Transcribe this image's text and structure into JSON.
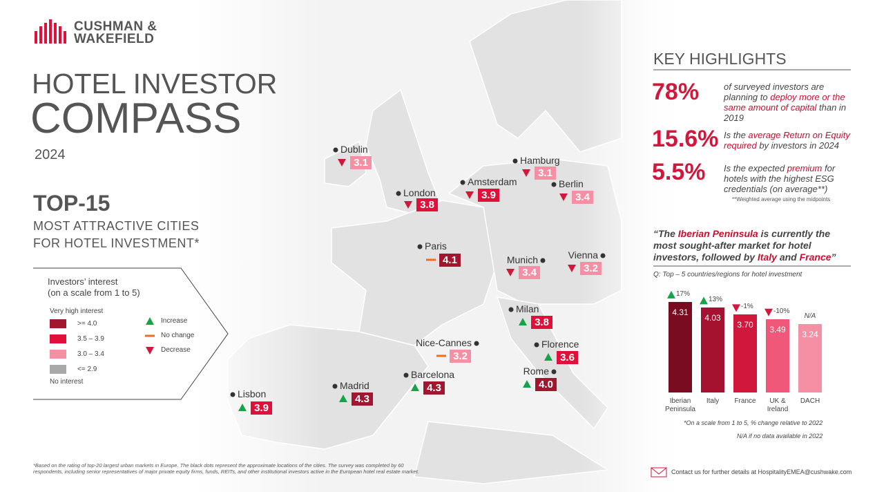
{
  "brand": "CUSHMAN & WAKEFIELD",
  "header": {
    "title_1": "HOTEL INVESTOR",
    "title_2": "COMPASS",
    "year": "2024",
    "top": "TOP-15",
    "subtitle_1": "MOST ATTRACTIVE CITIES",
    "subtitle_2": "FOR HOTEL INVESTMENT*"
  },
  "legend": {
    "title_1": "Investors’ interest",
    "title_2": "(on a scale from 1 to 5)",
    "high": "Very high interest",
    "low": "No interest",
    "tiers": [
      {
        "label": ">= 4.0",
        "color": "#a0172f"
      },
      {
        "label": "3.5 – 3.9",
        "color": "#e0103a"
      },
      {
        "label": "3.0 – 3.4",
        "color": "#f590a4"
      },
      {
        "label": "<= 2.9",
        "color": "#a8a8a8"
      }
    ],
    "trends": [
      {
        "label": "Increase",
        "trend": "up"
      },
      {
        "label": "No change",
        "trend": "flat"
      },
      {
        "label": "Decrease",
        "trend": "down"
      }
    ]
  },
  "cities": [
    {
      "name": "Dublin",
      "score": "3.1",
      "trend": "down",
      "color": "#f590a4"
    },
    {
      "name": "London",
      "score": "3.8",
      "trend": "down",
      "color": "#e0103a"
    },
    {
      "name": "Amsterdam",
      "score": "3.9",
      "trend": "down",
      "color": "#e0103a"
    },
    {
      "name": "Hamburg",
      "score": "3.1",
      "trend": "down",
      "color": "#f590a4"
    },
    {
      "name": "Berlin",
      "score": "3.4",
      "trend": "down",
      "color": "#f590a4"
    },
    {
      "name": "Paris",
      "score": "4.1",
      "trend": "flat",
      "color": "#a0172f"
    },
    {
      "name": "Munich",
      "score": "3.4",
      "trend": "down",
      "color": "#f590a4"
    },
    {
      "name": "Vienna",
      "score": "3.2",
      "trend": "down",
      "color": "#f590a4"
    },
    {
      "name": "Milan",
      "score": "3.8",
      "trend": "up",
      "color": "#e0103a"
    },
    {
      "name": "Nice-Cannes",
      "score": "3.2",
      "trend": "flat",
      "color": "#f590a4"
    },
    {
      "name": "Florence",
      "score": "3.6",
      "trend": "up",
      "color": "#e0103a"
    },
    {
      "name": "Rome",
      "score": "4.0",
      "trend": "up",
      "color": "#a0172f"
    },
    {
      "name": "Barcelona",
      "score": "4.3",
      "trend": "up",
      "color": "#a0172f"
    },
    {
      "name": "Madrid",
      "score": "4.3",
      "trend": "up",
      "color": "#a0172f"
    },
    {
      "name": "Lisbon",
      "score": "3.9",
      "trend": "up",
      "color": "#e0103a"
    }
  ],
  "highlights": {
    "title": "KEY HIGHLIGHTS",
    "items": [
      {
        "stat": "78%",
        "text": [
          {
            "t": "of surveyed investors are planning to "
          },
          {
            "t": "deploy more or the same amount of capital",
            "em": true
          },
          {
            "t": " than in 2019"
          }
        ]
      },
      {
        "stat": "15.6%",
        "text": [
          {
            "t": "Is the "
          },
          {
            "t": "average Return on Equity required",
            "em": true
          },
          {
            "t": " by investors in 2024"
          }
        ]
      },
      {
        "stat": "5.5%",
        "text": [
          {
            "t": "Is the expected "
          },
          {
            "t": "premium",
            "em": true
          },
          {
            "t": " for hotels with the highest ESG credentials (on average**)"
          }
        ]
      }
    ],
    "note": "**Weighted average using the midpoints",
    "quote": [
      {
        "t": "“The "
      },
      {
        "t": "Iberian Peninsula",
        "em": true
      },
      {
        "t": " is currently the most sought-after market for hotel investors, followed by "
      },
      {
        "t": "Italy",
        "em": true
      },
      {
        "t": " and "
      },
      {
        "t": "France",
        "em": true
      },
      {
        "t": "”"
      }
    ]
  },
  "chart_data": {
    "type": "bar",
    "caption": "Q: Top – 5 countries/regions for hotel investment",
    "categories": [
      "Iberian Peninsula",
      "Italy",
      "France",
      "UK & Ireland",
      "DACH"
    ],
    "values": [
      4.31,
      4.03,
      3.7,
      3.49,
      3.24
    ],
    "value_labels": [
      "4.31",
      "4.03",
      "3.70",
      "3.49",
      "3.24"
    ],
    "colors": [
      "#7a0c22",
      "#a5122f",
      "#d2173c",
      "#f0587a",
      "#f590a4"
    ],
    "change_labels": [
      "17%",
      "13%",
      "-1%",
      "-10%",
      "N/A"
    ],
    "change_dirs": [
      "up",
      "up",
      "down",
      "down",
      null
    ],
    "ylim": [
      0,
      4.6
    ],
    "note_1": "*On a scale from 1 to 5, % change relative to 2022",
    "note_2": "N/A if no data available in 2022"
  },
  "footnote": "*Based on the rating of top-20 largest urban markets in Europe. The black dots represent the approximate locations of the cities. The survey was completed by 60 respondents, including senior representatives of major private equity firms, funds, REITs, and other institutional investors active in the European hotel real estate market.",
  "contact": "Contact us for further details at HospitalityEMEA@cushwake.com"
}
